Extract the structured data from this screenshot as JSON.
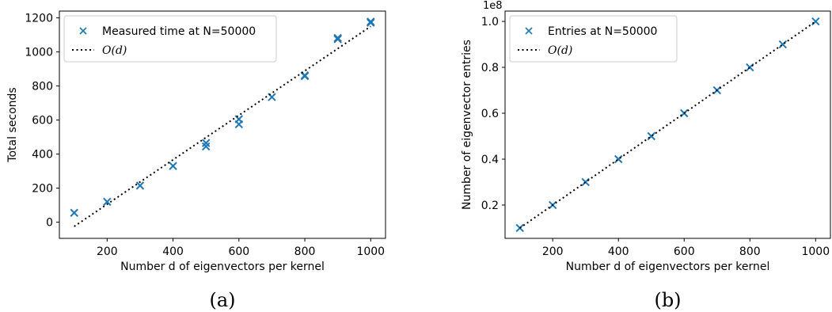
{
  "chart_data": [
    {
      "type": "scatter",
      "caption": "(a)",
      "xlabel": "Number d of eigenvectors per kernel",
      "ylabel": "Total seconds",
      "xlim": [
        55,
        1045
      ],
      "ylim": [
        -95,
        1240
      ],
      "xticks": [
        200,
        400,
        600,
        800,
        1000
      ],
      "yticks": [
        0,
        200,
        400,
        600,
        800,
        1000,
        1200
      ],
      "ytick_labels": [
        "0",
        "200",
        "400",
        "600",
        "800",
        "1000",
        "1200"
      ],
      "offset_text": "",
      "legend_position": "top-left",
      "series": [
        {
          "name": "Measured time at N=50000",
          "marker": "x",
          "color": "#1f77b4",
          "x": [
            100,
            200,
            300,
            400,
            500,
            500,
            600,
            600,
            700,
            800,
            800,
            900,
            900,
            1000,
            1000
          ],
          "y": [
            55,
            120,
            215,
            330,
            445,
            465,
            575,
            605,
            735,
            858,
            862,
            1075,
            1082,
            1172,
            1178
          ]
        },
        {
          "name": "O(d)",
          "name_prefix": "O",
          "name_suffix": "(d)",
          "style": "dotted",
          "color": "#000000",
          "x": [
            100,
            1000
          ],
          "y": [
            -25,
            1150
          ]
        }
      ]
    },
    {
      "type": "scatter",
      "caption": "(b)",
      "xlabel": "Number d of eigenvectors per kernel",
      "ylabel": "Number of eigenvector entries",
      "xlim": [
        55,
        1045
      ],
      "ylim": [
        0.055,
        1.045
      ],
      "xticks": [
        200,
        400,
        600,
        800,
        1000
      ],
      "yticks": [
        0.2,
        0.4,
        0.6,
        0.8,
        1.0
      ],
      "ytick_labels": [
        "0.2",
        "0.4",
        "0.6",
        "0.8",
        "1.0"
      ],
      "offset_text": "1e8",
      "legend_position": "top-left",
      "series": [
        {
          "name": "Entries at N=50000",
          "marker": "x",
          "color": "#1f77b4",
          "x": [
            100,
            200,
            300,
            400,
            500,
            600,
            700,
            800,
            900,
            1000
          ],
          "y": [
            0.1,
            0.2,
            0.3,
            0.4,
            0.5,
            0.6,
            0.7,
            0.8,
            0.9,
            1.0
          ]
        },
        {
          "name": "O(d)",
          "name_prefix": "O",
          "name_suffix": "(d)",
          "style": "dotted",
          "color": "#000000",
          "x": [
            100,
            1000
          ],
          "y": [
            0.1,
            1.0
          ]
        }
      ]
    }
  ]
}
